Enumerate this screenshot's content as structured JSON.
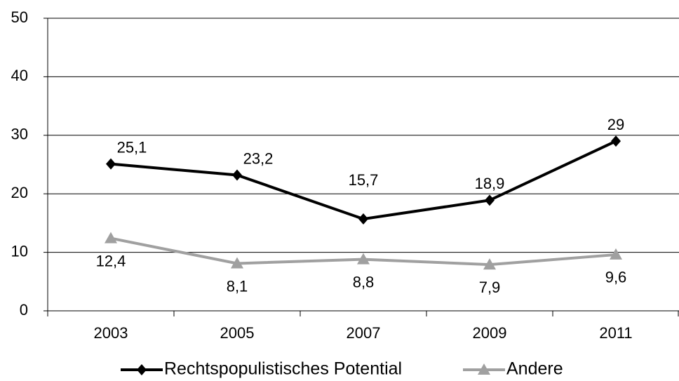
{
  "chart_data": {
    "type": "line",
    "categories": [
      "2003",
      "2005",
      "2007",
      "2009",
      "2011"
    ],
    "series": [
      {
        "name": "Rechtspopulistisches Potential",
        "color": "#000000",
        "marker": "diamond",
        "values": [
          25.1,
          23.2,
          15.7,
          18.9,
          29
        ],
        "value_labels": [
          "25,1",
          "23,2",
          "15,7",
          "18,9",
          "29"
        ]
      },
      {
        "name": "Andere",
        "color": "#a0a0a0",
        "marker": "triangle",
        "values": [
          12.4,
          8.1,
          8.8,
          7.9,
          9.6
        ],
        "value_labels": [
          "12,4",
          "8,1",
          "8,8",
          "7,9",
          "9,6"
        ]
      }
    ],
    "ylim": [
      0,
      50
    ],
    "yticks": [
      0,
      10,
      20,
      30,
      40,
      50
    ],
    "grid": true,
    "legend": "bottom"
  }
}
